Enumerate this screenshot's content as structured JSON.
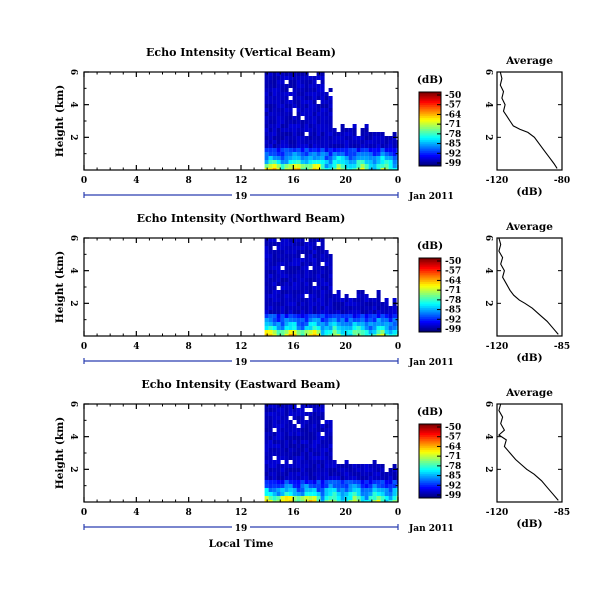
{
  "chart_data": [
    {
      "type": "heatmap",
      "title": "Echo Intensity (Vertical Beam)",
      "ylabel": "Height (km)",
      "x_ticks": [
        "0",
        "4",
        "8",
        "12",
        "16",
        "20",
        "0"
      ],
      "xlim": [
        0,
        24
      ],
      "y_ticks": [
        "6",
        "4",
        "2"
      ],
      "ylim": [
        0,
        6
      ],
      "date_label": "19",
      "month_label": "Jan 2011",
      "colorbar": {
        "unit": "(dB)",
        "ticks": [
          "-50",
          "-57",
          "-64",
          "-71",
          "-78",
          "-85",
          "-92",
          "-99"
        ],
        "range": [
          -99,
          -50
        ],
        "colormap": "jet"
      },
      "data_start_hour": 13.8,
      "profile": {
        "title": "Average",
        "xlabel": "(dB)",
        "x_ticks": [
          "-120",
          "-80"
        ],
        "xlim": [
          -120,
          -80
        ],
        "y_ticks": [
          "6",
          "4",
          "2"
        ],
        "ylim": [
          0,
          6
        ],
        "points": [
          [
            -118,
            6.0
          ],
          [
            -117,
            5.6
          ],
          [
            -118,
            5.2
          ],
          [
            -116,
            4.8
          ],
          [
            -117,
            4.4
          ],
          [
            -115,
            4.0
          ],
          [
            -116,
            3.6
          ],
          [
            -114,
            3.3
          ],
          [
            -112,
            3.0
          ],
          [
            -110,
            2.7
          ],
          [
            -106,
            2.5
          ],
          [
            -101,
            2.3
          ],
          [
            -97,
            2.0
          ],
          [
            -94,
            1.6
          ],
          [
            -91,
            1.2
          ],
          [
            -88,
            0.8
          ],
          [
            -85,
            0.4
          ],
          [
            -83,
            0.1
          ]
        ]
      }
    },
    {
      "type": "heatmap",
      "title": "Echo Intensity (Northward Beam)",
      "ylabel": "Height (km)",
      "x_ticks": [
        "0",
        "4",
        "8",
        "12",
        "16",
        "20",
        "0"
      ],
      "xlim": [
        0,
        24
      ],
      "y_ticks": [
        "6",
        "4",
        "2"
      ],
      "ylim": [
        0,
        6
      ],
      "date_label": "19",
      "month_label": "Jan 2011",
      "colorbar": {
        "unit": "(dB)",
        "ticks": [
          "-50",
          "-57",
          "-64",
          "-71",
          "-78",
          "-85",
          "-92",
          "-99"
        ],
        "range": [
          -99,
          -50
        ],
        "colormap": "jet"
      },
      "data_start_hour": 13.8,
      "profile": {
        "title": "Average",
        "xlabel": "(dB)",
        "x_ticks": [
          "-120",
          "-85"
        ],
        "xlim": [
          -120,
          -85
        ],
        "y_ticks": [
          "6",
          "4",
          "2"
        ],
        "ylim": [
          0,
          6
        ],
        "points": [
          [
            -119,
            6.0
          ],
          [
            -118,
            5.6
          ],
          [
            -119,
            5.2
          ],
          [
            -117,
            4.8
          ],
          [
            -118,
            4.4
          ],
          [
            -116,
            4.0
          ],
          [
            -117,
            3.6
          ],
          [
            -115,
            3.2
          ],
          [
            -113,
            2.8
          ],
          [
            -111,
            2.5
          ],
          [
            -108,
            2.2
          ],
          [
            -105,
            2.0
          ],
          [
            -101,
            1.7
          ],
          [
            -97,
            1.3
          ],
          [
            -93,
            0.9
          ],
          [
            -90,
            0.5
          ],
          [
            -87,
            0.1
          ]
        ]
      }
    },
    {
      "type": "heatmap",
      "title": "Echo Intensity (Eastward Beam)",
      "ylabel": "Height (km)",
      "x_ticks": [
        "0",
        "4",
        "8",
        "12",
        "16",
        "20",
        "0"
      ],
      "xlim": [
        0,
        24
      ],
      "y_ticks": [
        "6",
        "4",
        "2"
      ],
      "ylim": [
        0,
        6
      ],
      "date_label": "19",
      "month_label": "Jan 2011",
      "xlabel": "Local Time",
      "colorbar": {
        "unit": "(dB)",
        "ticks": [
          "-50",
          "-57",
          "-64",
          "-71",
          "-78",
          "-85",
          "-92",
          "-99"
        ],
        "range": [
          -99,
          -50
        ],
        "colormap": "jet"
      },
      "data_start_hour": 13.8,
      "profile": {
        "title": "Average",
        "xlabel": "(dB)",
        "x_ticks": [
          "-120",
          "-85"
        ],
        "xlim": [
          -120,
          -85
        ],
        "y_ticks": [
          "6",
          "4",
          "2"
        ],
        "ylim": [
          0,
          6
        ],
        "points": [
          [
            -118,
            6.0
          ],
          [
            -119,
            5.6
          ],
          [
            -117,
            5.2
          ],
          [
            -118,
            4.8
          ],
          [
            -116,
            4.4
          ],
          [
            -119,
            4.1
          ],
          [
            -115,
            3.8
          ],
          [
            -116,
            3.4
          ],
          [
            -113,
            3.0
          ],
          [
            -110,
            2.6
          ],
          [
            -107,
            2.3
          ],
          [
            -104,
            2.0
          ],
          [
            -100,
            1.7
          ],
          [
            -96,
            1.3
          ],
          [
            -93,
            0.9
          ],
          [
            -90,
            0.5
          ],
          [
            -87,
            0.1
          ]
        ]
      }
    }
  ]
}
